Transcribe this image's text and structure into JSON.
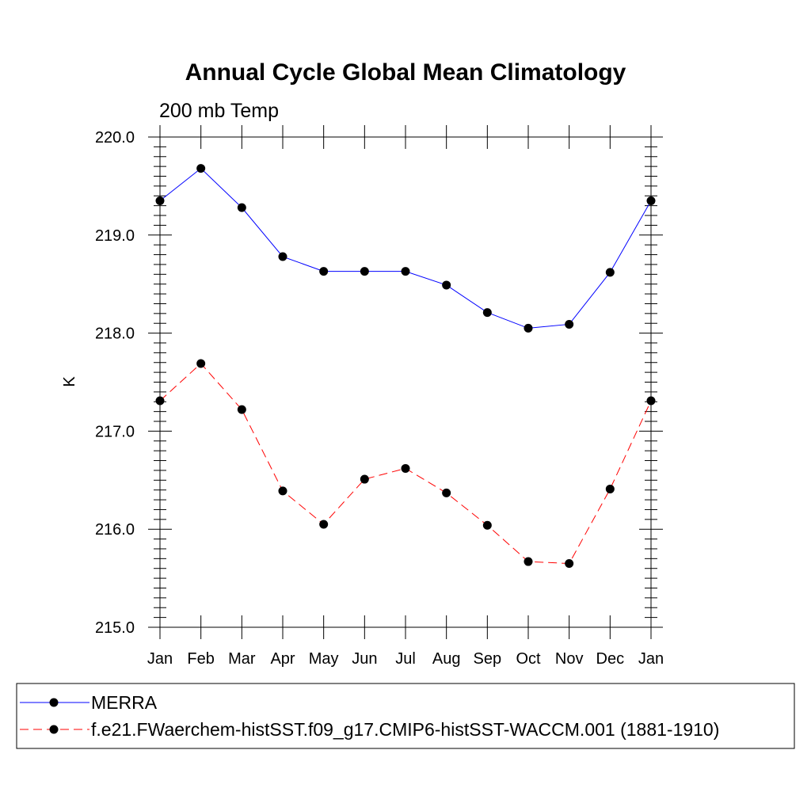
{
  "chart_data": {
    "type": "line",
    "title": "Annual Cycle Global Mean Climatology",
    "subtitle": "200 mb Temp",
    "xlabel": "",
    "ylabel": "K",
    "categories": [
      "Jan",
      "Feb",
      "Mar",
      "Apr",
      "May",
      "Jun",
      "Jul",
      "Aug",
      "Sep",
      "Oct",
      "Nov",
      "Dec",
      "Jan"
    ],
    "ylim": [
      215.0,
      220.0
    ],
    "yticks": [
      "215.0",
      "216.0",
      "217.0",
      "218.0",
      "219.0",
      "220.0"
    ],
    "series": [
      {
        "name": "MERRA",
        "color": "#0000ff",
        "dash": "solid",
        "values": [
          219.35,
          219.68,
          219.28,
          218.78,
          218.63,
          218.63,
          218.63,
          218.49,
          218.21,
          218.05,
          218.09,
          218.62,
          219.35
        ]
      },
      {
        "name": "f.e21.FWaerchem-histSST.f09_g17.CMIP6-histSST-WACCM.001 (1881-1910)",
        "color": "#ff0000",
        "dash": "dashed",
        "values": [
          217.31,
          217.69,
          217.22,
          216.39,
          216.05,
          216.51,
          216.62,
          216.37,
          216.04,
          215.67,
          215.65,
          216.41,
          217.31
        ]
      }
    ],
    "legend_position": "bottom"
  }
}
